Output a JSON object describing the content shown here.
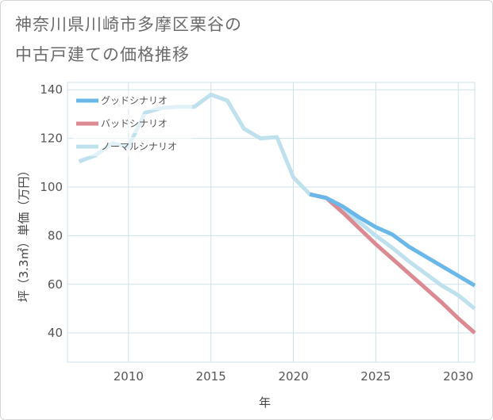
{
  "title_lines": [
    "神奈川県川崎市多摩区栗谷の",
    "中古戸建ての価格推移"
  ],
  "chart_data": {
    "type": "line",
    "title": "神奈川県川崎市多摩区栗谷の中古戸建ての価格推移",
    "xlabel": "年",
    "ylabel": "坪（3.3㎡）単価（万円）",
    "xlim": [
      2006.3,
      2031
    ],
    "ylim": [
      28,
      143
    ],
    "xticks": [
      2010,
      2015,
      2020,
      2025,
      2030
    ],
    "yticks": [
      40,
      60,
      80,
      100,
      120,
      140
    ],
    "grid": true,
    "legend_position": "top-left",
    "series": [
      {
        "name": "グッドシナリオ",
        "color": "#6ab8ea",
        "x": [
          2021,
          2022,
          2023,
          2024,
          2025,
          2026,
          2027,
          2028,
          2029,
          2030,
          2031
        ],
        "y": [
          97,
          95.5,
          92,
          87.5,
          83.5,
          80.5,
          75.5,
          71.5,
          67.5,
          63.5,
          59.5
        ]
      },
      {
        "name": "バッドシナリオ",
        "color": "#dc8a92",
        "x": [
          2021,
          2022,
          2023,
          2024,
          2025,
          2026,
          2027,
          2028,
          2029,
          2030,
          2031
        ],
        "y": [
          97,
          95.5,
          89.5,
          83,
          76.5,
          70.5,
          64.5,
          58.5,
          52.5,
          46,
          40
        ]
      },
      {
        "name": "ノーマルシナリオ",
        "color": "#bfe0ed",
        "x": [
          2007,
          2008,
          2009,
          2010,
          2011,
          2012,
          2013,
          2014,
          2015,
          2016,
          2017,
          2018,
          2019,
          2020,
          2021,
          2022,
          2023,
          2024,
          2025,
          2026,
          2027,
          2028,
          2029,
          2030,
          2031
        ],
        "y": [
          110.5,
          113,
          118,
          116.5,
          130.5,
          132.5,
          133,
          133,
          138,
          135.5,
          124,
          120,
          120.5,
          104,
          97,
          95.5,
          91,
          85.5,
          80,
          75,
          69.5,
          64.5,
          59.5,
          55.5,
          50
        ]
      }
    ]
  }
}
